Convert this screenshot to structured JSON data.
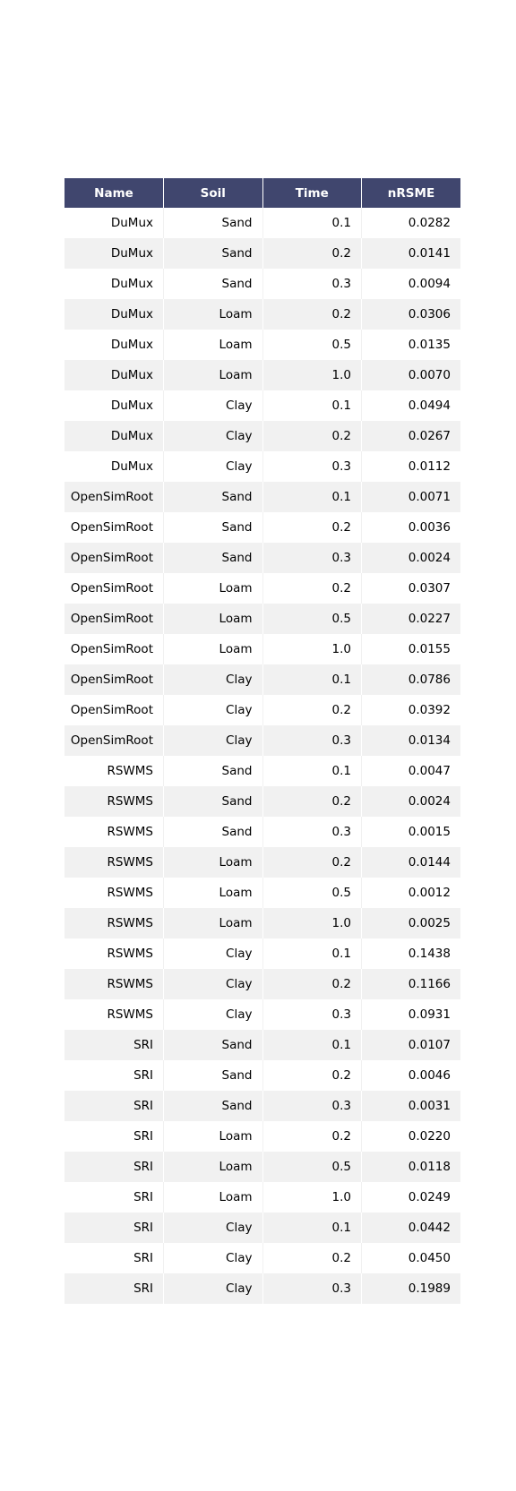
{
  "chart_data": {
    "type": "table",
    "columns": [
      "Name",
      "Soil",
      "Time",
      "nRSME"
    ],
    "rows": [
      [
        "DuMux",
        "Sand",
        "0.1",
        "0.0282"
      ],
      [
        "DuMux",
        "Sand",
        "0.2",
        "0.0141"
      ],
      [
        "DuMux",
        "Sand",
        "0.3",
        "0.0094"
      ],
      [
        "DuMux",
        "Loam",
        "0.2",
        "0.0306"
      ],
      [
        "DuMux",
        "Loam",
        "0.5",
        "0.0135"
      ],
      [
        "DuMux",
        "Loam",
        "1.0",
        "0.0070"
      ],
      [
        "DuMux",
        "Clay",
        "0.1",
        "0.0494"
      ],
      [
        "DuMux",
        "Clay",
        "0.2",
        "0.0267"
      ],
      [
        "DuMux",
        "Clay",
        "0.3",
        "0.0112"
      ],
      [
        "OpenSimRoot",
        "Sand",
        "0.1",
        "0.0071"
      ],
      [
        "OpenSimRoot",
        "Sand",
        "0.2",
        "0.0036"
      ],
      [
        "OpenSimRoot",
        "Sand",
        "0.3",
        "0.0024"
      ],
      [
        "OpenSimRoot",
        "Loam",
        "0.2",
        "0.0307"
      ],
      [
        "OpenSimRoot",
        "Loam",
        "0.5",
        "0.0227"
      ],
      [
        "OpenSimRoot",
        "Loam",
        "1.0",
        "0.0155"
      ],
      [
        "OpenSimRoot",
        "Clay",
        "0.1",
        "0.0786"
      ],
      [
        "OpenSimRoot",
        "Clay",
        "0.2",
        "0.0392"
      ],
      [
        "OpenSimRoot",
        "Clay",
        "0.3",
        "0.0134"
      ],
      [
        "RSWMS",
        "Sand",
        "0.1",
        "0.0047"
      ],
      [
        "RSWMS",
        "Sand",
        "0.2",
        "0.0024"
      ],
      [
        "RSWMS",
        "Sand",
        "0.3",
        "0.0015"
      ],
      [
        "RSWMS",
        "Loam",
        "0.2",
        "0.0144"
      ],
      [
        "RSWMS",
        "Loam",
        "0.5",
        "0.0012"
      ],
      [
        "RSWMS",
        "Loam",
        "1.0",
        "0.0025"
      ],
      [
        "RSWMS",
        "Clay",
        "0.1",
        "0.1438"
      ],
      [
        "RSWMS",
        "Clay",
        "0.2",
        "0.1166"
      ],
      [
        "RSWMS",
        "Clay",
        "0.3",
        "0.0931"
      ],
      [
        "SRI",
        "Sand",
        "0.1",
        "0.0107"
      ],
      [
        "SRI",
        "Sand",
        "0.2",
        "0.0046"
      ],
      [
        "SRI",
        "Sand",
        "0.3",
        "0.0031"
      ],
      [
        "SRI",
        "Loam",
        "0.2",
        "0.0220"
      ],
      [
        "SRI",
        "Loam",
        "0.5",
        "0.0118"
      ],
      [
        "SRI",
        "Loam",
        "1.0",
        "0.0249"
      ],
      [
        "SRI",
        "Clay",
        "0.1",
        "0.0442"
      ],
      [
        "SRI",
        "Clay",
        "0.2",
        "0.0450"
      ],
      [
        "SRI",
        "Clay",
        "0.3",
        "0.1989"
      ]
    ]
  },
  "colors": {
    "header_bg": "#40466e",
    "header_text": "#ffffff",
    "stripe_bg": "#f1f1f1",
    "row_bg": "#ffffff"
  }
}
